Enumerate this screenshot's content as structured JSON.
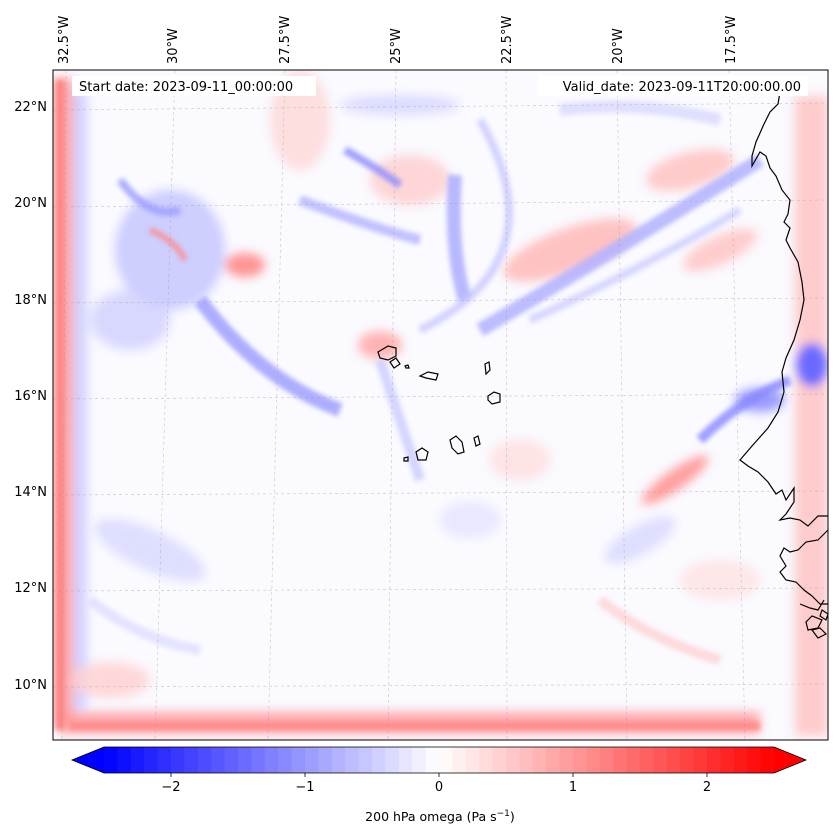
{
  "map": {
    "start_label": "Start date: 2023-09-11_00:00:00",
    "valid_label": "Valid_date: 2023-09-11T20:00:00.00",
    "lon_labels": [
      "32.5°W",
      "30°W",
      "27.5°W",
      "25°W",
      "22.5°W",
      "20°W",
      "17.5°W"
    ],
    "lat_labels": [
      "22°N",
      "20°N",
      "18°N",
      "16°N",
      "14°N",
      "12°N",
      "10°N"
    ],
    "variable": "200 hPa omega",
    "units_base": "(Pa s",
    "units_exp": "−1",
    "units_close": ")",
    "field_range": [
      -2.5,
      2.5
    ],
    "colormap": "bwr",
    "gridlines": true
  },
  "colorbar": {
    "ticks": [
      "−2",
      "−1",
      "0",
      "1",
      "2"
    ],
    "tick_values": [
      -2,
      -1,
      0,
      1,
      2
    ],
    "range": [
      -2.5,
      2.5
    ],
    "step": 0.1,
    "extend": "both",
    "colors": {
      "negative": "#0000ff",
      "zero": "#ffffff",
      "positive": "#ff0000"
    }
  }
}
